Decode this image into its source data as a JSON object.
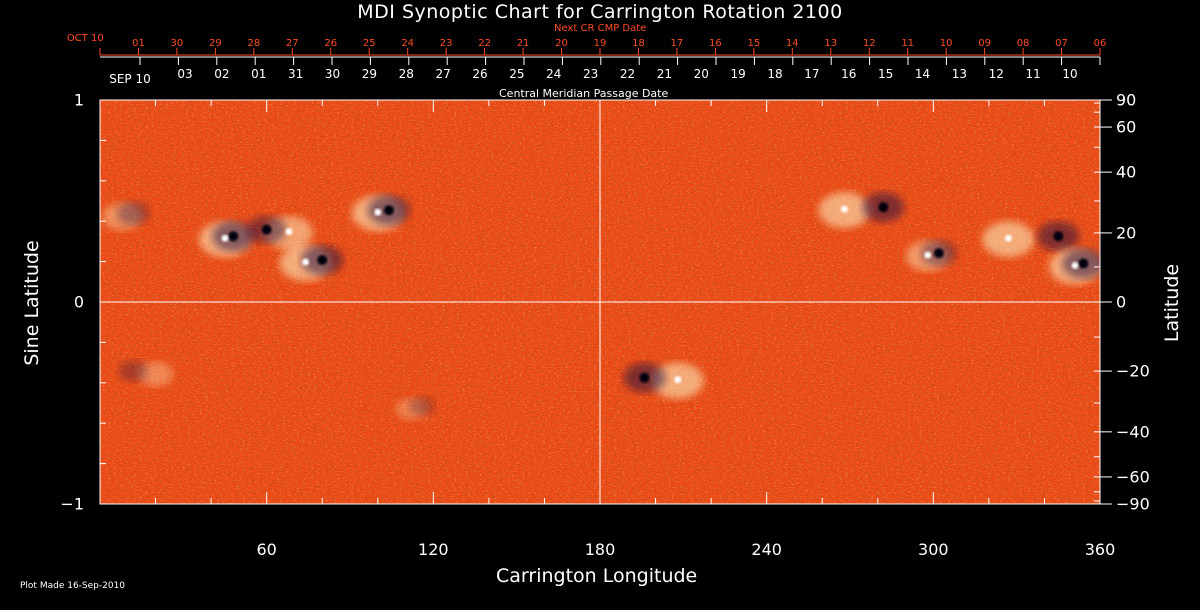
{
  "chart_data": {
    "type": "heatmap",
    "title": "MDI Synoptic Chart for Carrington Rotation 2100",
    "xlabel": "Carrington Longitude",
    "ylabel_left": "Sine Latitude",
    "ylabel_right": "Latitude",
    "xlim": [
      0,
      360
    ],
    "ylim": [
      -1,
      1
    ],
    "x_ticks": [
      "60",
      "120",
      "180",
      "240",
      "300",
      "360"
    ],
    "x_tick_values": [
      60,
      120,
      180,
      240,
      300,
      360
    ],
    "y_left_ticks": [
      {
        "value": 1,
        "label": "1"
      },
      {
        "value": 0,
        "label": "0"
      },
      {
        "value": -1,
        "label": "−1"
      }
    ],
    "y_right_ticks": [
      {
        "lat": 90,
        "label": "90"
      },
      {
        "lat": 60,
        "label": "60"
      },
      {
        "lat": 40,
        "label": "40"
      },
      {
        "lat": 20,
        "label": "20"
      },
      {
        "lat": 0,
        "label": "0"
      },
      {
        "lat": -20,
        "label": "−20"
      },
      {
        "lat": -40,
        "label": "−40"
      },
      {
        "lat": -60,
        "label": "−60"
      },
      {
        "lat": -90,
        "label": "−90"
      }
    ],
    "gridlines": {
      "x": 180,
      "y": 0
    },
    "top_axis_red_label": "Next CR CMP Date",
    "top_axis_red_ticks": [
      "OCT 10",
      "01",
      "30",
      "29",
      "28",
      "27",
      "26",
      "25",
      "24",
      "23",
      "22",
      "21",
      "20",
      "19",
      "18",
      "17",
      "16",
      "15",
      "14",
      "13",
      "12",
      "11",
      "10",
      "09",
      "08",
      "07",
      "06"
    ],
    "top_axis_white_label": "Central Meridian Passage Date",
    "top_axis_white_ticks": [
      "SEP 10",
      "03",
      "02",
      "01",
      "31",
      "30",
      "29",
      "28",
      "27",
      "26",
      "25",
      "24",
      "23",
      "22",
      "21",
      "20",
      "19",
      "18",
      "17",
      "16",
      "15",
      "14",
      "13",
      "12",
      "11",
      "10"
    ],
    "colors": {
      "background": "#ff4a12",
      "positive": "#fff6c8",
      "negative": "#1a0e45",
      "grid": "#ffffff",
      "red_axis": "#ff4a22"
    },
    "active_regions": [
      {
        "lon": 12,
        "lat": 26,
        "strength": 0.7,
        "pos_dlon": -4
      },
      {
        "lon": 48,
        "lat": 19,
        "strength": 1.0,
        "pos_dlon": -3
      },
      {
        "lon": 60,
        "lat": 21,
        "strength": 0.9,
        "pos_dlon": 8
      },
      {
        "lon": 80,
        "lat": 12,
        "strength": 1.0,
        "pos_dlon": -6
      },
      {
        "lon": 104,
        "lat": 27,
        "strength": 1.0,
        "pos_dlon": -4
      },
      {
        "lon": 282,
        "lat": 28,
        "strength": 1.0,
        "pos_dlon": -14
      },
      {
        "lon": 302,
        "lat": 14,
        "strength": 0.8,
        "pos_dlon": -4
      },
      {
        "lon": 345,
        "lat": 19,
        "strength": 1.0,
        "pos_dlon": -18
      },
      {
        "lon": 354,
        "lat": 11,
        "strength": 1.0,
        "pos_dlon": -3
      },
      {
        "lon": 196,
        "lat": -22,
        "strength": 1.0,
        "pos_dlon": 12
      },
      {
        "lon": 12,
        "lat": -20,
        "strength": 0.6,
        "pos_dlon": 8
      },
      {
        "lon": 116,
        "lat": -31,
        "strength": 0.5,
        "pos_dlon": -4
      }
    ]
  },
  "footer": {
    "plot_made": "Plot Made 16-Sep-2010"
  }
}
